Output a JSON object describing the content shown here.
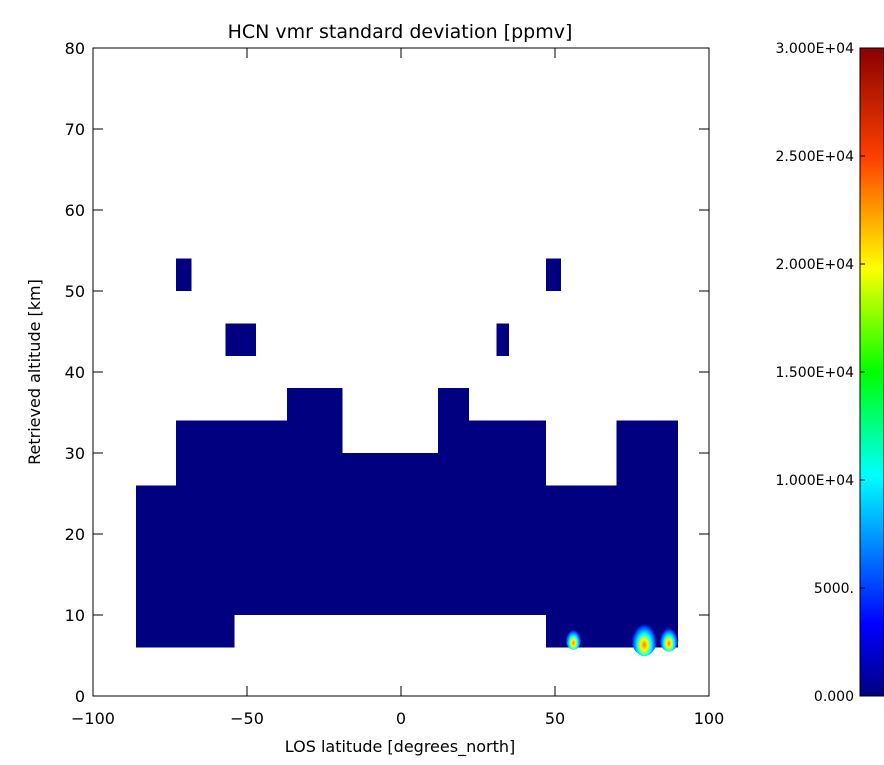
{
  "chart_data": {
    "type": "heatmap",
    "title": "HCN vmr standard deviation [ppmv]",
    "xlabel": "LOS latitude [degrees_north]",
    "ylabel": "Retrieved altitude [km]",
    "xlim": [
      -100,
      100
    ],
    "ylim": [
      0,
      80
    ],
    "x_ticks": [
      -100,
      -50,
      0,
      50,
      100
    ],
    "y_ticks": [
      0,
      10,
      20,
      30,
      40,
      50,
      60,
      70,
      80
    ],
    "x_tick_labels": [
      "−100",
      "−50",
      "0",
      "50",
      "100"
    ],
    "y_tick_labels": [
      "0",
      "10",
      "20",
      "30",
      "40",
      "50",
      "60",
      "70",
      "80"
    ],
    "grid": false,
    "colorbar": {
      "min": 0,
      "max": 30000,
      "ticks": [
        0,
        5000,
        10000,
        15000,
        20000,
        25000,
        30000
      ],
      "tick_labels": [
        "0.000",
        "5000.",
        "1.000E+04",
        "1.500E+04",
        "2.000E+04",
        "2.500E+04",
        "3.000E+04"
      ],
      "colormap": "rainbow",
      "low_color": "#000080"
    },
    "cells_at_minimum": [
      {
        "x": [
          -86,
          90
        ],
        "y": [
          10,
          26
        ]
      },
      {
        "x": [
          -86,
          -54
        ],
        "y": [
          6,
          10
        ]
      },
      {
        "x": [
          47,
          90
        ],
        "y": [
          6,
          10
        ]
      },
      {
        "x": [
          -73,
          47
        ],
        "y": [
          26,
          30
        ]
      },
      {
        "x": [
          -73,
          -54
        ],
        "y": [
          30,
          34
        ]
      },
      {
        "x": [
          -54,
          -19
        ],
        "y": [
          30,
          34
        ]
      },
      {
        "x": [
          -19,
          12
        ],
        "y": [
          26,
          30
        ]
      },
      {
        "x": [
          12,
          47
        ],
        "y": [
          30,
          34
        ]
      },
      {
        "x": [
          70,
          90
        ],
        "y": [
          26,
          34
        ]
      },
      {
        "x": [
          -37,
          -19
        ],
        "y": [
          34,
          38
        ]
      },
      {
        "x": [
          12,
          22
        ],
        "y": [
          34,
          38
        ]
      },
      {
        "x": [
          -73,
          34
        ],
        "y": [
          26,
          26
        ]
      },
      {
        "x": [
          -73,
          -68
        ],
        "y": [
          50,
          54
        ]
      },
      {
        "x": [
          -57,
          -47
        ],
        "y": [
          42,
          46
        ]
      },
      {
        "x": [
          31,
          35
        ],
        "y": [
          42,
          46
        ]
      },
      {
        "x": [
          47,
          52
        ],
        "y": [
          50,
          54
        ]
      }
    ],
    "peaks": [
      {
        "x": 56,
        "y": 7,
        "value": 5500
      },
      {
        "x": 79,
        "y": 7,
        "value": 17000
      },
      {
        "x": 87,
        "y": 7,
        "value": 9000
      }
    ]
  }
}
